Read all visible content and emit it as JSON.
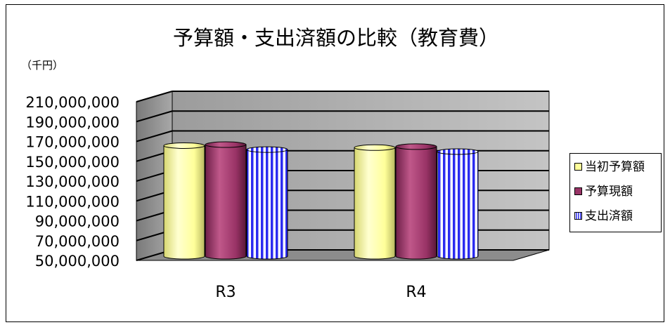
{
  "chart_data": {
    "type": "bar",
    "title": "予算額・支出済額の比較（教育費）",
    "unit_label": "（千円）",
    "categories": [
      "R3",
      "R4"
    ],
    "ylim": [
      50000000,
      210000000
    ],
    "y_ticks": [
      50000000,
      70000000,
      90000000,
      110000000,
      130000000,
      150000000,
      170000000,
      190000000,
      210000000
    ],
    "y_tick_labels": [
      "50,000,000",
      "70,000,000",
      "90,000,000",
      "110,000,000",
      "130,000,000",
      "150,000,000",
      "170,000,000",
      "190,000,000",
      "210,000,000"
    ],
    "grid": true,
    "legend_position": "right",
    "series": [
      {
        "name": "当初予算額",
        "values": [
          161000000,
          159000000
        ],
        "color": "#ffff99"
      },
      {
        "name": "予算現額",
        "values": [
          162000000,
          160000000
        ],
        "color": "#993366"
      },
      {
        "name": "支出済額",
        "values": [
          157000000,
          155000000
        ],
        "color": "#3333ff"
      }
    ]
  }
}
